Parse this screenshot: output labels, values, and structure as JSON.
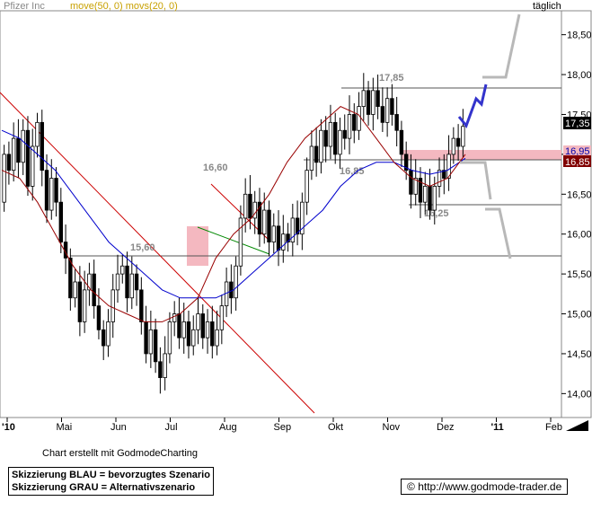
{
  "header": {
    "instrument": "Pfizer Inc",
    "indicators": "move(50, 0) movs(20, 0)",
    "frequency": "täglich"
  },
  "chart_data": {
    "type": "candlestick",
    "ylim": [
      13.7,
      18.8
    ],
    "y_ticks": [
      "14,00",
      "14,50",
      "15,00",
      "15,50",
      "16,00",
      "16,50",
      "17,00",
      "17,50",
      "18,00",
      "18,50"
    ],
    "x_ticks": [
      "'10",
      "Mai",
      "Jun",
      "Jul",
      "Aug",
      "Sep",
      "Okt",
      "Nov",
      "Dez",
      "'11",
      "Feb"
    ],
    "last_price": "17,35",
    "zone_labels": [
      "16,95",
      "16,85"
    ],
    "levels": [
      {
        "label": "17,85",
        "value": 17.85
      },
      {
        "label": "16,85",
        "value": 16.85
      },
      {
        "label": "16,25",
        "value": 16.25
      },
      {
        "label": "15,60",
        "value": 15.6
      }
    ],
    "trendline_labels": [
      "16,60"
    ],
    "price_path": [
      [
        16.4,
        17.0
      ],
      [
        17.0,
        16.8
      ],
      [
        16.8,
        17.2
      ],
      [
        17.2,
        16.9
      ],
      [
        16.9,
        17.3
      ],
      [
        17.3,
        16.6
      ],
      [
        16.6,
        17.1
      ],
      [
        17.1,
        17.4
      ],
      [
        17.4,
        16.8
      ],
      [
        16.8,
        16.3
      ],
      [
        16.3,
        16.7
      ],
      [
        16.7,
        16.4
      ],
      [
        16.4,
        15.9
      ],
      [
        15.9,
        15.7
      ],
      [
        15.7,
        15.2
      ],
      [
        15.2,
        15.4
      ],
      [
        15.4,
        14.9
      ],
      [
        14.9,
        15.3
      ],
      [
        15.3,
        15.5
      ],
      [
        15.5,
        15.1
      ],
      [
        15.1,
        14.8
      ],
      [
        14.8,
        14.6
      ],
      [
        14.6,
        14.9
      ],
      [
        14.9,
        15.3
      ],
      [
        15.3,
        15.5
      ],
      [
        15.5,
        15.6
      ],
      [
        15.6,
        15.2
      ],
      [
        15.2,
        15.5
      ],
      [
        15.5,
        15.3
      ],
      [
        15.3,
        14.9
      ],
      [
        14.9,
        14.5
      ],
      [
        14.5,
        14.8
      ],
      [
        14.8,
        14.4
      ],
      [
        14.4,
        14.2
      ],
      [
        14.2,
        14.5
      ],
      [
        14.5,
        14.9
      ],
      [
        14.9,
        15.0
      ],
      [
        15.0,
        14.7
      ],
      [
        14.7,
        14.9
      ],
      [
        14.9,
        14.6
      ],
      [
        14.6,
        14.8
      ],
      [
        14.8,
        15.0
      ],
      [
        15.0,
        14.7
      ],
      [
        14.7,
        14.9
      ],
      [
        14.9,
        14.6
      ],
      [
        14.6,
        14.8
      ],
      [
        14.8,
        15.1
      ],
      [
        15.1,
        15.4
      ],
      [
        15.4,
        15.2
      ],
      [
        15.2,
        15.6
      ],
      [
        15.6,
        16.2
      ],
      [
        16.2,
        16.5
      ],
      [
        16.5,
        16.2
      ],
      [
        16.2,
        16.4
      ],
      [
        16.4,
        16.0
      ],
      [
        16.0,
        16.3
      ],
      [
        16.3,
        15.9
      ],
      [
        15.9,
        16.1
      ],
      [
        16.1,
        15.8
      ],
      [
        15.8,
        16.0
      ],
      [
        16.0,
        15.9
      ],
      [
        15.9,
        16.2
      ],
      [
        16.2,
        16.0
      ],
      [
        16.0,
        16.4
      ],
      [
        16.4,
        16.8
      ],
      [
        16.8,
        17.1
      ],
      [
        17.1,
        16.9
      ],
      [
        16.9,
        17.3
      ],
      [
        17.3,
        17.1
      ],
      [
        17.1,
        17.4
      ],
      [
        17.4,
        17.0
      ],
      [
        17.0,
        17.3
      ],
      [
        17.3,
        17.2
      ],
      [
        17.2,
        17.5
      ],
      [
        17.5,
        17.3
      ],
      [
        17.3,
        17.6
      ],
      [
        17.6,
        17.8
      ],
      [
        17.8,
        17.5
      ],
      [
        17.5,
        17.8
      ],
      [
        17.8,
        17.6
      ],
      [
        17.6,
        17.4
      ],
      [
        17.4,
        17.7
      ],
      [
        17.7,
        17.5
      ],
      [
        17.5,
        17.3
      ],
      [
        17.3,
        17.0
      ],
      [
        17.0,
        16.8
      ],
      [
        16.8,
        16.5
      ],
      [
        16.5,
        16.7
      ],
      [
        16.7,
        16.4
      ],
      [
        16.4,
        16.6
      ],
      [
        16.6,
        16.3
      ],
      [
        16.3,
        16.6
      ],
      [
        16.6,
        16.8
      ],
      [
        16.8,
        16.7
      ],
      [
        16.7,
        17.0
      ],
      [
        17.0,
        17.2
      ],
      [
        17.2,
        17.1
      ],
      [
        17.1,
        17.35
      ]
    ],
    "moving_averages": [
      {
        "name": "move(50, 0)",
        "color": "#0000cc",
        "values": [
          17.3,
          17.2,
          17.0,
          16.8,
          16.5,
          16.2,
          15.9,
          15.7,
          15.5,
          15.3,
          15.2,
          15.2,
          15.2,
          15.3,
          15.5,
          15.7,
          15.9,
          16.1,
          16.3,
          16.6,
          16.8,
          16.9,
          16.9,
          16.8,
          16.75,
          16.8,
          16.95
        ]
      },
      {
        "name": "movs(20, 0)",
        "color": "#990000",
        "values": [
          16.8,
          16.7,
          16.4,
          16.0,
          15.6,
          15.3,
          15.1,
          15.0,
          14.9,
          14.9,
          15.0,
          15.2,
          15.7,
          16.0,
          16.2,
          16.5,
          16.9,
          17.2,
          17.4,
          17.6,
          17.5,
          17.2,
          16.9,
          16.7,
          16.6,
          16.7,
          17.0
        ]
      }
    ]
  },
  "footer": {
    "credit": "Chart erstellt mit GodmodeCharting",
    "legend_blue": "Skizzierung BLAU = bevorzugtes Szenario",
    "legend_gray": "Skizzierung GRAU = Alternativszenario",
    "copyright_symbol": "©",
    "url": "http://www.godmode-trader.de"
  },
  "colors": {
    "zone": "#f4b8c0",
    "scenario_blue": "#3333cc",
    "scenario_gray": "#b8b8b8",
    "trend_red": "#cc0000",
    "trend_green": "#008800",
    "label_gray": "#888888"
  }
}
